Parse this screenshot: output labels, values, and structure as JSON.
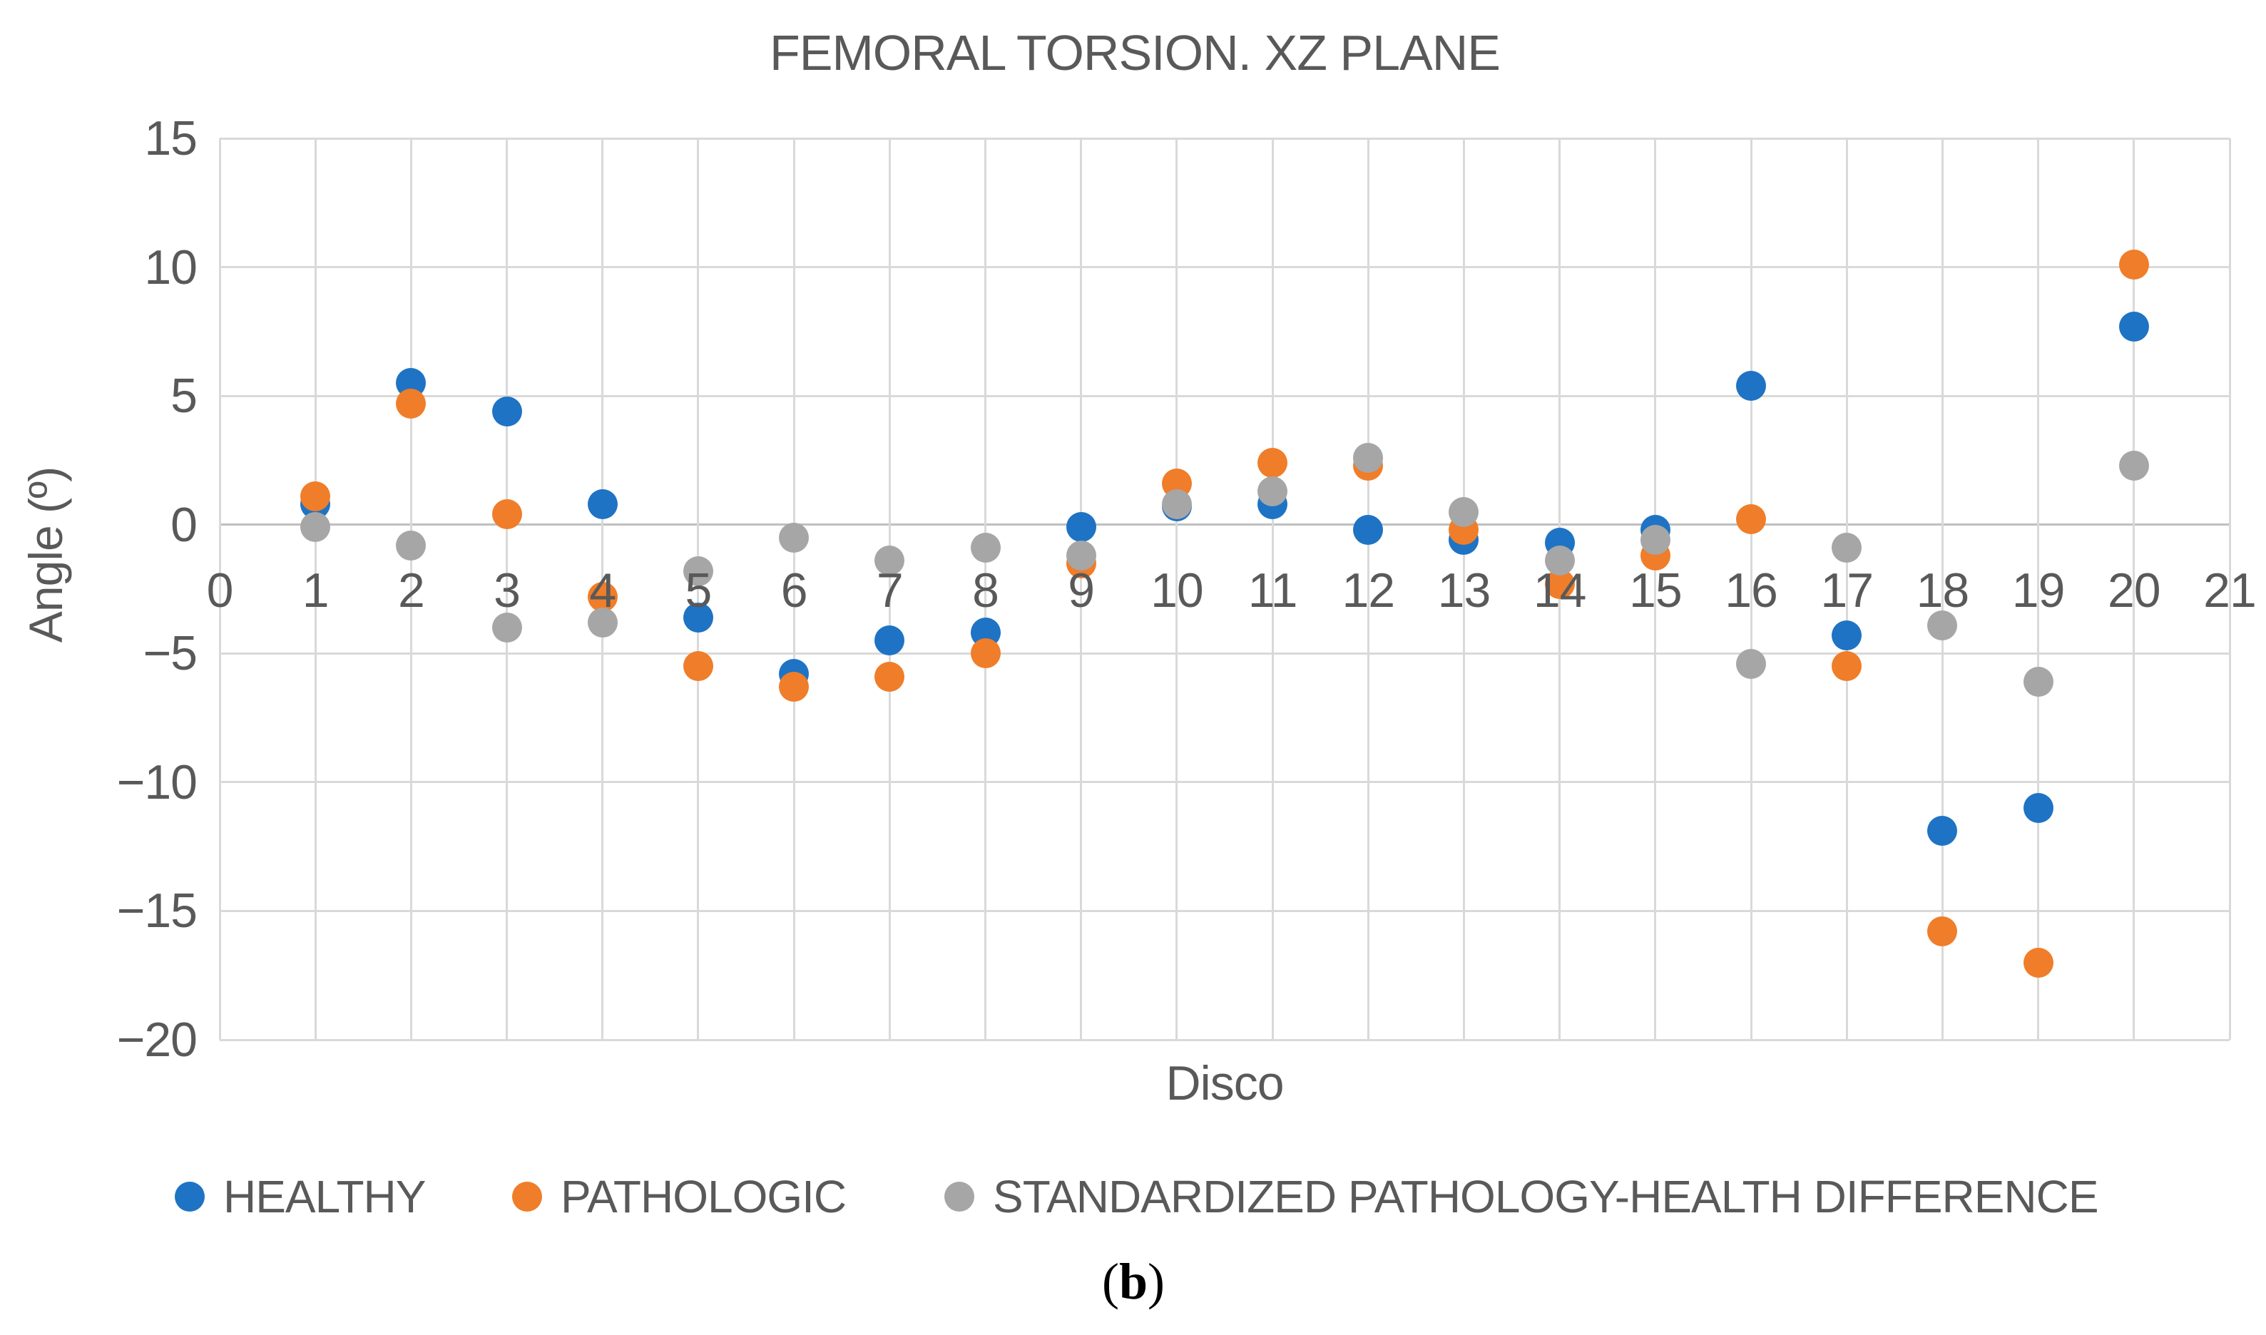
{
  "title": "FEMORAL TORSION. XZ PLANE",
  "caption": {
    "open": "(",
    "letter": "b",
    "close": ")"
  },
  "colors": {
    "healthy_blue": "#1E73C4",
    "pathologic_orange": "#F07D29",
    "difference_gray": "#A6A6A6",
    "text_gray": "#595959",
    "gridline": "#D9D9D9",
    "zero_line": "#BFBFBF"
  },
  "chart_data": {
    "type": "scatter",
    "title": "FEMORAL TORSION. XZ PLANE",
    "xlabel": "Disco",
    "ylabel": "Angle (º)",
    "xlim": [
      0,
      21
    ],
    "ylim": [
      -20,
      15
    ],
    "x_ticks": [
      0,
      1,
      2,
      3,
      4,
      5,
      6,
      7,
      8,
      9,
      10,
      11,
      12,
      13,
      14,
      15,
      16,
      17,
      18,
      19,
      20,
      21
    ],
    "y_ticks": [
      15,
      10,
      5,
      0,
      -5,
      -10,
      -15,
      -20
    ],
    "grid": true,
    "legend_position": "bottom",
    "x": [
      1,
      2,
      3,
      4,
      5,
      6,
      7,
      8,
      9,
      10,
      11,
      12,
      13,
      14,
      15,
      16,
      17,
      18,
      19,
      20
    ],
    "series": [
      {
        "name": "HEALTHY",
        "color": "#1E73C4",
        "values": [
          0.8,
          5.5,
          4.4,
          0.8,
          -3.6,
          -5.8,
          -4.5,
          -4.2,
          -0.1,
          0.7,
          0.8,
          -0.2,
          -0.6,
          -0.7,
          -0.2,
          5.4,
          -4.3,
          -11.9,
          -11.0,
          7.7
        ]
      },
      {
        "name": "PATHOLOGIC",
        "color": "#F07D29",
        "values": [
          1.1,
          4.7,
          0.4,
          -2.8,
          -5.5,
          -6.3,
          -5.9,
          -5.0,
          -1.5,
          1.6,
          2.4,
          2.3,
          -0.2,
          -2.3,
          -1.2,
          0.2,
          -5.5,
          -15.8,
          -17.0,
          10.1
        ]
      },
      {
        "name": "STANDARDIZED PATHOLOGY-HEALTH DIFFERENCE",
        "color": "#A6A6A6",
        "values": [
          -0.1,
          -0.8,
          -4.0,
          -3.8,
          -1.8,
          -0.5,
          -1.4,
          -0.9,
          -1.2,
          0.8,
          1.3,
          2.6,
          0.5,
          -1.4,
          -0.6,
          -5.4,
          -0.9,
          -3.9,
          -6.1,
          2.3
        ]
      }
    ]
  }
}
